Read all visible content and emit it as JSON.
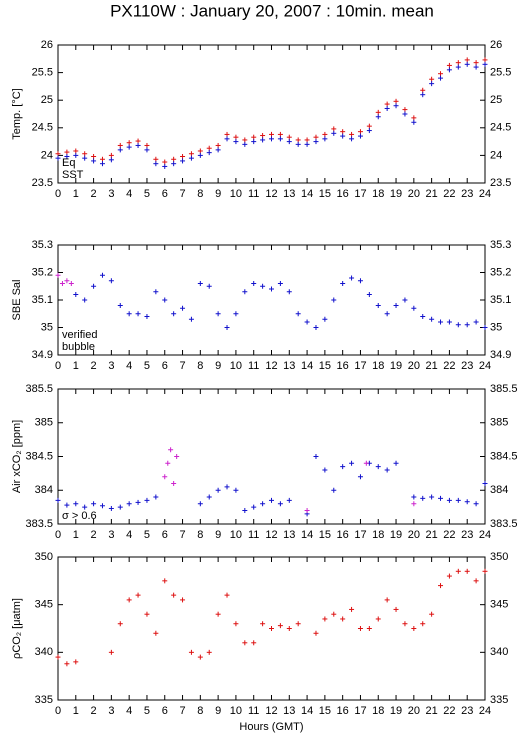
{
  "title": "PX110W : January 20, 2007 : 10min. mean",
  "chart_data": [
    {
      "type": "scatter",
      "y_label": "Temp. [°C]",
      "xlim": [
        0,
        24
      ],
      "xticks": [
        0,
        1,
        2,
        3,
        4,
        5,
        6,
        7,
        8,
        9,
        10,
        11,
        12,
        13,
        14,
        15,
        16,
        17,
        18,
        19,
        20,
        21,
        22,
        23,
        24
      ],
      "ylim": [
        23.5,
        26
      ],
      "yticks": [
        23.5,
        24,
        24.5,
        25,
        25.5,
        26
      ],
      "legend": "lower left",
      "x": [
        0,
        0.5,
        1,
        1.5,
        2,
        2.5,
        3,
        3.5,
        4,
        4.5,
        5,
        5.5,
        6,
        6.5,
        7,
        7.5,
        8,
        8.5,
        9,
        9.5,
        10,
        10.5,
        11,
        11.5,
        12,
        12.5,
        13,
        13.5,
        14,
        14.5,
        15,
        15.5,
        16,
        16.5,
        17,
        17.5,
        18,
        18.5,
        19,
        19.5,
        20,
        20.5,
        21,
        21.5,
        22,
        22.5,
        23,
        23.5,
        24
      ],
      "series": [
        {
          "name": "Eq",
          "color": "#dd1111",
          "values": [
            24.03,
            24.06,
            24.08,
            24.03,
            23.98,
            23.93,
            24.0,
            24.18,
            24.23,
            24.26,
            24.18,
            23.93,
            23.88,
            23.93,
            23.98,
            24.03,
            24.08,
            24.13,
            24.18,
            24.38,
            24.33,
            24.28,
            24.33,
            24.36,
            24.38,
            24.38,
            24.33,
            24.28,
            24.28,
            24.33,
            24.38,
            24.48,
            24.43,
            24.38,
            24.43,
            24.53,
            24.78,
            24.93,
            24.98,
            24.83,
            24.68,
            25.18,
            25.38,
            25.48,
            25.63,
            25.68,
            25.73,
            25.68,
            25.73
          ]
        },
        {
          "name": "SST",
          "color": "#1111cc",
          "values": [
            23.95,
            23.98,
            24.0,
            23.95,
            23.9,
            23.85,
            23.92,
            24.1,
            24.15,
            24.18,
            24.1,
            23.85,
            23.8,
            23.85,
            23.9,
            23.95,
            24.0,
            24.05,
            24.1,
            24.3,
            24.25,
            24.2,
            24.25,
            24.28,
            24.3,
            24.3,
            24.25,
            24.2,
            24.2,
            24.25,
            24.3,
            24.4,
            24.35,
            24.3,
            24.35,
            24.45,
            24.7,
            24.85,
            24.9,
            24.75,
            24.6,
            25.1,
            25.3,
            25.4,
            25.55,
            25.6,
            25.65,
            25.6,
            25.65
          ]
        }
      ]
    },
    {
      "type": "scatter",
      "y_label": "SBE Sal",
      "xlim": [
        0,
        24
      ],
      "xticks": [
        0,
        1,
        2,
        3,
        4,
        5,
        6,
        7,
        8,
        9,
        10,
        11,
        12,
        13,
        14,
        15,
        16,
        17,
        18,
        19,
        20,
        21,
        22,
        23,
        24
      ],
      "ylim": [
        34.9,
        35.3
      ],
      "yticks": [
        34.9,
        35,
        35.1,
        35.2,
        35.3
      ],
      "legend": "lower left",
      "x": [
        0,
        0.5,
        1,
        1.5,
        2,
        2.5,
        3,
        3.5,
        4,
        4.5,
        5,
        5.5,
        6,
        6.5,
        7,
        7.5,
        8,
        8.5,
        9,
        9.5,
        10,
        10.5,
        11,
        11.5,
        12,
        12.5,
        13,
        13.5,
        14,
        14.5,
        15,
        15.5,
        16,
        16.5,
        17,
        17.5,
        18,
        18.5,
        19,
        19.5,
        20,
        20.5,
        21,
        21.5,
        22,
        22.5,
        23,
        23.5,
        24
      ],
      "series": [
        {
          "name": "verified",
          "color": "#1111cc",
          "values": [
            null,
            null,
            35.12,
            35.1,
            35.15,
            35.19,
            35.17,
            35.08,
            35.05,
            35.05,
            35.04,
            35.13,
            35.1,
            35.05,
            35.07,
            35.03,
            35.16,
            35.15,
            35.05,
            35.0,
            35.05,
            35.13,
            35.16,
            35.15,
            35.14,
            35.16,
            35.13,
            35.05,
            35.02,
            35.0,
            35.03,
            35.1,
            35.16,
            35.18,
            35.17,
            35.12,
            35.08,
            35.05,
            35.08,
            35.1,
            35.07,
            35.04,
            35.03,
            35.02,
            35.02,
            35.01,
            35.01,
            35.02,
            35.0
          ]
        },
        {
          "name": "bubble",
          "color": "#cc22cc",
          "x": [
            0,
            0.25,
            0.5,
            0.75
          ],
          "values": [
            35.19,
            35.16,
            35.17,
            35.16
          ]
        }
      ]
    },
    {
      "type": "scatter",
      "y_label": "Air xCO₂ [ppm]",
      "xlim": [
        0,
        24
      ],
      "xticks": [
        0,
        1,
        2,
        3,
        4,
        5,
        6,
        7,
        8,
        9,
        10,
        11,
        12,
        13,
        14,
        15,
        16,
        17,
        18,
        19,
        20,
        21,
        22,
        23,
        24
      ],
      "ylim": [
        383.5,
        385.5
      ],
      "yticks": [
        383.5,
        384,
        384.5,
        385,
        385.5
      ],
      "legend": "lower left",
      "x": [
        0,
        0.5,
        1,
        1.5,
        2,
        2.5,
        3,
        3.5,
        4,
        4.5,
        5,
        5.5,
        6,
        6.5,
        7,
        7.5,
        8,
        8.5,
        9,
        9.5,
        10,
        10.5,
        11,
        11.5,
        12,
        12.5,
        13,
        13.5,
        14,
        14.5,
        15,
        15.5,
        16,
        16.5,
        17,
        17.5,
        18,
        18.5,
        19,
        19.5,
        20,
        20.5,
        21,
        21.5,
        22,
        22.5,
        23,
        23.5,
        24
      ],
      "series": [
        {
          "color": "#1111cc",
          "values": [
            383.85,
            383.78,
            383.8,
            383.75,
            383.8,
            383.77,
            383.73,
            383.75,
            383.8,
            383.82,
            383.85,
            383.9,
            null,
            null,
            null,
            null,
            383.8,
            383.9,
            384.0,
            384.05,
            384.0,
            383.7,
            383.75,
            383.8,
            383.85,
            383.8,
            383.85,
            null,
            383.65,
            384.5,
            384.3,
            384.0,
            384.35,
            384.4,
            384.2,
            384.4,
            384.35,
            384.3,
            384.4,
            null,
            383.9,
            383.88,
            383.9,
            383.88,
            383.85,
            383.85,
            383.83,
            383.8,
            384.1
          ]
        },
        {
          "name": "σ > 0.6",
          "color": "#cc22cc",
          "x": [
            6,
            6.17,
            6.33,
            6.5,
            6.67,
            14,
            17.33,
            20
          ],
          "values": [
            384.2,
            384.4,
            384.6,
            384.1,
            384.5,
            383.7,
            384.4,
            383.8
          ]
        }
      ]
    },
    {
      "type": "scatter",
      "y_label": "ρCO₂ [μatm]",
      "x_label": "Hours (GMT)",
      "xlim": [
        0,
        24
      ],
      "xticks": [
        0,
        1,
        2,
        3,
        4,
        5,
        6,
        7,
        8,
        9,
        10,
        11,
        12,
        13,
        14,
        15,
        16,
        17,
        18,
        19,
        20,
        21,
        22,
        23,
        24
      ],
      "ylim": [
        335,
        350
      ],
      "yticks": [
        335,
        340,
        345,
        350
      ],
      "x": [
        0,
        0.5,
        1,
        1.5,
        2,
        2.5,
        3,
        3.5,
        4,
        4.5,
        5,
        5.5,
        6,
        6.5,
        7,
        7.5,
        8,
        8.5,
        9,
        9.5,
        10,
        10.5,
        11,
        11.5,
        12,
        12.5,
        13,
        13.5,
        14,
        14.5,
        15,
        15.5,
        16,
        16.5,
        17,
        17.5,
        18,
        18.5,
        19,
        19.5,
        20,
        20.5,
        21,
        21.5,
        22,
        22.5,
        23,
        23.5,
        24
      ],
      "series": [
        {
          "color": "#dd1111",
          "values": [
            339.5,
            338.8,
            339.0,
            null,
            null,
            null,
            340,
            343,
            345.5,
            346,
            344,
            342,
            347.5,
            346,
            345.5,
            340,
            339.5,
            340,
            344,
            346,
            343,
            341,
            341,
            343,
            342.5,
            342.8,
            342.5,
            343,
            null,
            342,
            343.5,
            344,
            343.5,
            344.5,
            342.5,
            342.5,
            343.5,
            345.5,
            344.5,
            343,
            342.5,
            343,
            344,
            347,
            348,
            348.5,
            348.5,
            347.5,
            348.5
          ]
        }
      ]
    }
  ]
}
